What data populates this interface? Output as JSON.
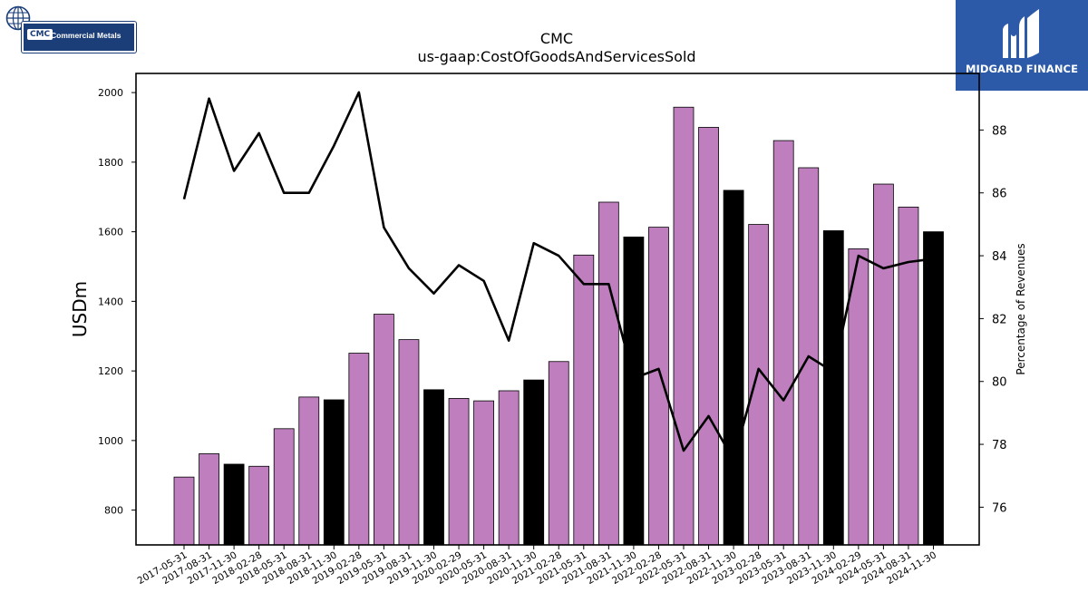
{
  "logos": {
    "left": {
      "abbr": "CMC",
      "name": "Commercial Metals"
    },
    "right": {
      "name": "MIDGARD FINANCE"
    }
  },
  "chart_data": {
    "type": "bar",
    "title": "CMC",
    "subtitle": "us-gaap:CostOfGoodsAndServicesSold",
    "ylabel": "USDm",
    "y2label": "Percentage of Revenues",
    "ylim": [
      700,
      2055
    ],
    "y2lim": [
      74.8,
      89.8
    ],
    "yticks": [
      800,
      1000,
      1200,
      1400,
      1600,
      1800,
      2000
    ],
    "y2ticks": [
      76,
      78,
      80,
      82,
      84,
      86,
      88
    ],
    "categories": [
      "2017-05-31",
      "2017-08-31",
      "2017-11-30",
      "2018-02-28",
      "2018-05-31",
      "2018-08-31",
      "2018-11-30",
      "2019-02-28",
      "2019-05-31",
      "2019-08-31",
      "2019-11-30",
      "2020-02-29",
      "2020-05-31",
      "2020-08-31",
      "2020-11-30",
      "2021-02-28",
      "2021-05-31",
      "2021-08-31",
      "2021-11-30",
      "2022-02-28",
      "2022-05-31",
      "2022-08-31",
      "2022-11-30",
      "2023-02-28",
      "2023-05-31",
      "2023-08-31",
      "2023-11-30",
      "2024-02-29",
      "2024-05-31",
      "2024-08-31",
      "2024-11-30"
    ],
    "series": [
      {
        "kind": "bar",
        "axis": "left",
        "values": [
          895,
          962,
          932,
          926,
          1034,
          1125,
          1117,
          1251,
          1363,
          1290,
          1146,
          1121,
          1114,
          1143,
          1174,
          1227,
          1533,
          1685,
          1585,
          1613,
          1958,
          1900,
          1719,
          1621,
          1862,
          1784,
          1603,
          1551,
          1737,
          1671,
          1600
        ],
        "highlight": [
          false,
          false,
          true,
          false,
          false,
          false,
          true,
          false,
          false,
          false,
          true,
          false,
          false,
          false,
          true,
          false,
          false,
          false,
          true,
          false,
          false,
          false,
          true,
          false,
          false,
          false,
          true,
          false,
          false,
          false,
          true
        ]
      },
      {
        "kind": "line",
        "axis": "right",
        "values": [
          85.8,
          89.0,
          86.7,
          87.9,
          86.0,
          86.0,
          87.5,
          89.2,
          84.9,
          83.6,
          82.8,
          83.7,
          83.2,
          81.3,
          84.4,
          84.0,
          83.1,
          83.1,
          80.1,
          80.4,
          77.8,
          78.9,
          77.5,
          80.4,
          79.4,
          80.8,
          80.3,
          84.0,
          83.6,
          83.8,
          83.9
        ]
      }
    ],
    "colors": {
      "bar": "#bf7fbf",
      "bar_highlight": "#000000",
      "line": "#000000"
    },
    "grid": false
  }
}
